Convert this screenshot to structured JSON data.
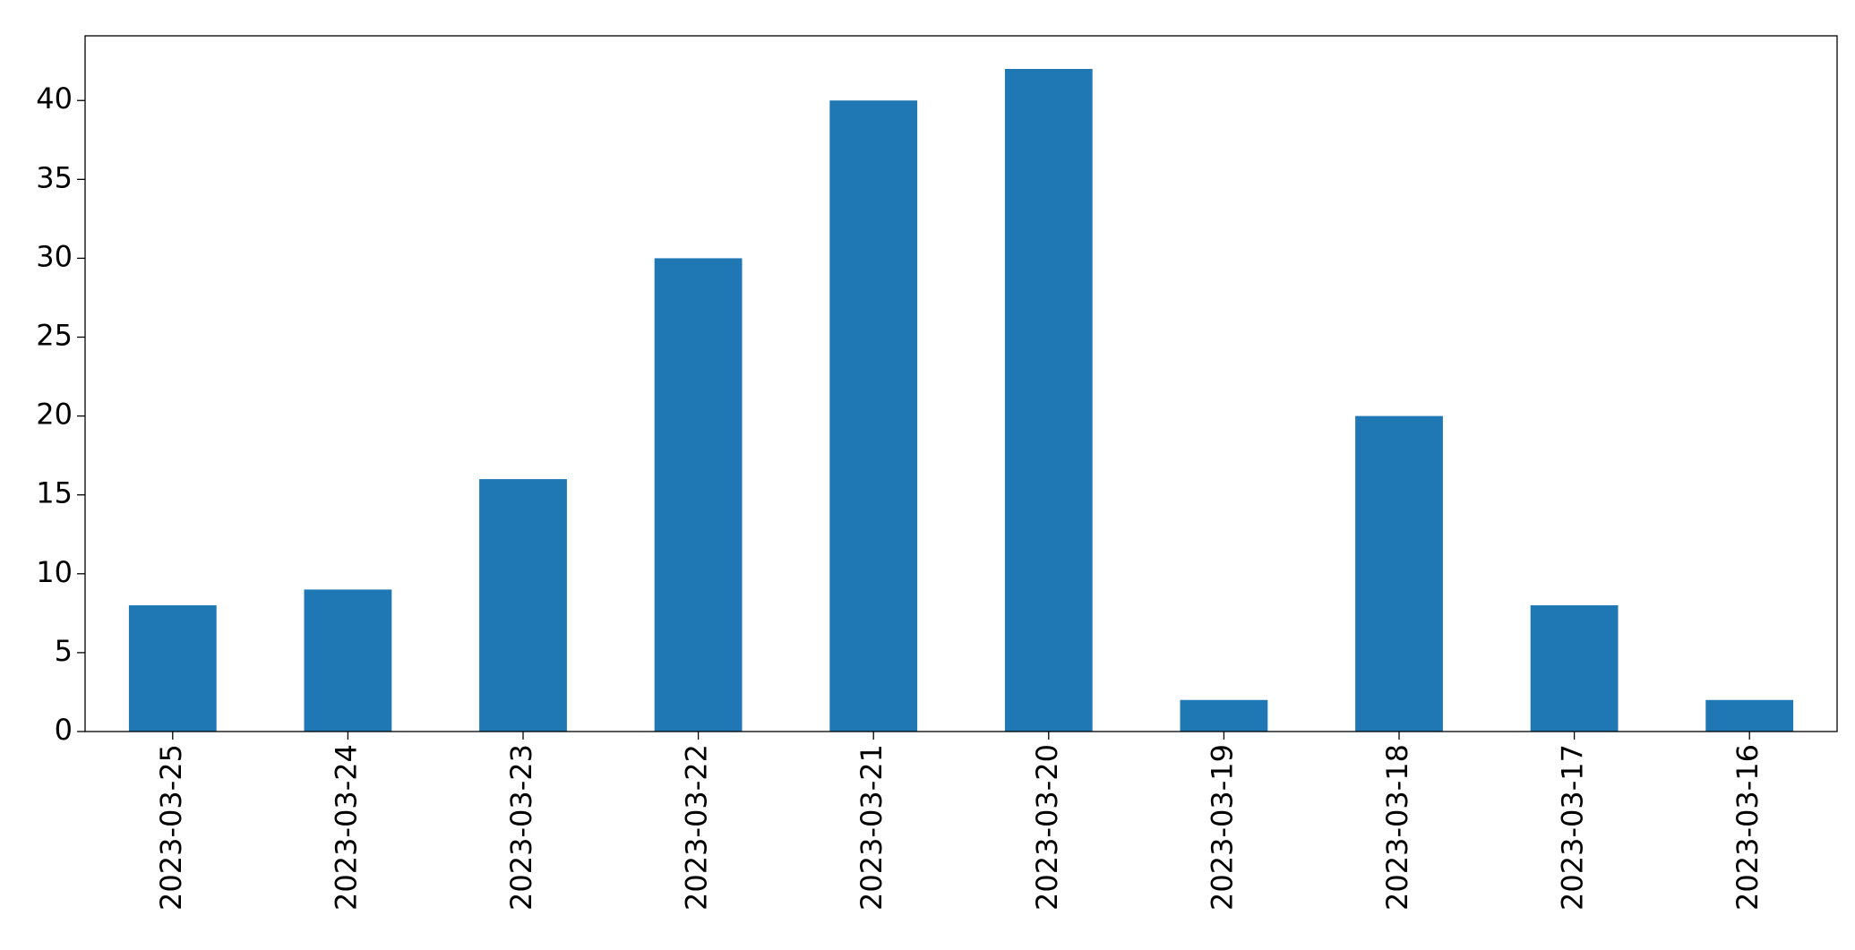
{
  "chart_data": {
    "type": "bar",
    "categories": [
      "2023-03-25",
      "2023-03-24",
      "2023-03-23",
      "2023-03-22",
      "2023-03-21",
      "2023-03-20",
      "2023-03-19",
      "2023-03-18",
      "2023-03-17",
      "2023-03-16"
    ],
    "values": [
      8,
      9,
      16,
      30,
      40,
      42,
      2,
      20,
      8,
      2
    ],
    "color": "#1f77b4",
    "ylim": [
      0,
      44.1
    ],
    "yticks": [
      0,
      5,
      10,
      15,
      20,
      25,
      30,
      35,
      40
    ],
    "grid": false
  }
}
